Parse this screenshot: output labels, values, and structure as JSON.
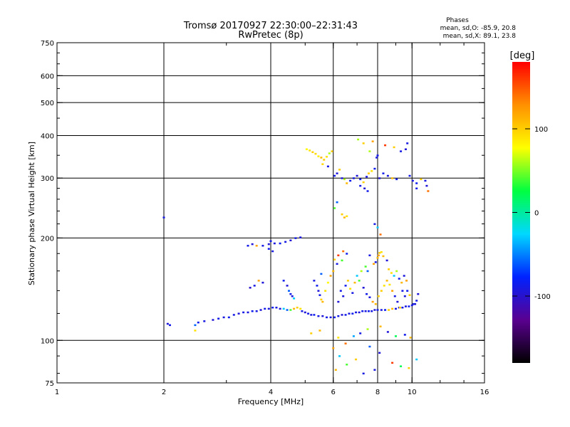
{
  "chart_data": {
    "type": "scatter",
    "title": "Tromsø 20170927 22:30:00–22:31:43",
    "subtitle": "RwPretec (8p)",
    "xlabel": "Frequency [MHz]",
    "ylabel": "Stationary phase Virtual Height [km]",
    "x_scale": "log",
    "y_scale": "log",
    "xlim": [
      1,
      16
    ],
    "ylim": [
      75,
      750
    ],
    "x_ticks": [
      1,
      2,
      4,
      6,
      8,
      10,
      16
    ],
    "x_tick_labels": [
      "1",
      "2",
      "4",
      "6",
      "8",
      "10",
      "16"
    ],
    "y_ticks": [
      75,
      100,
      200,
      300,
      400,
      500,
      600,
      750
    ],
    "y_tick_labels": [
      "75",
      "100",
      "200",
      "300",
      "400",
      "500",
      "600",
      "750"
    ],
    "x_grid": [
      2,
      4,
      6,
      8,
      10
    ],
    "y_grid": [
      100,
      200,
      300,
      400,
      500,
      600
    ],
    "grid": true,
    "phases_box": {
      "title": "Phases",
      "line1": "mean, sd,O: -85.9, 20.8",
      "line2": "mean, sd,X:  89.1, 23.8"
    },
    "colorbar": {
      "label": "[deg]",
      "range": [
        -180,
        180
      ],
      "ticks": [
        100,
        0,
        -100
      ],
      "tick_labels": [
        "100",
        "0",
        "-100"
      ],
      "colors": [
        "#000000",
        "#5a0090",
        "#0022ff",
        "#00d8ff",
        "#00ff40",
        "#ffff00",
        "#ff9000",
        "#ff0000"
      ]
    },
    "point_color_by": "phase_deg",
    "points": [
      [
        2.0,
        230,
        -90
      ],
      [
        2.05,
        112,
        -95
      ],
      [
        2.08,
        111,
        -88
      ],
      [
        2.45,
        111,
        -60
      ],
      [
        2.5,
        113,
        -85
      ],
      [
        2.45,
        107,
        90
      ],
      [
        2.6,
        114,
        -90
      ],
      [
        2.75,
        115,
        -95
      ],
      [
        2.85,
        116,
        -88
      ],
      [
        2.95,
        117,
        -92
      ],
      [
        3.05,
        117,
        -85
      ],
      [
        3.15,
        119,
        -90
      ],
      [
        3.25,
        120,
        -95
      ],
      [
        3.35,
        121,
        -88
      ],
      [
        3.45,
        121,
        -92
      ],
      [
        3.55,
        122,
        -85
      ],
      [
        3.65,
        122,
        -90
      ],
      [
        3.75,
        123,
        -95
      ],
      [
        3.85,
        124,
        -88
      ],
      [
        3.95,
        124,
        -92
      ],
      [
        4.05,
        125,
        -85
      ],
      [
        4.15,
        125,
        -90
      ],
      [
        4.25,
        124,
        -95
      ],
      [
        4.35,
        124,
        -30
      ],
      [
        4.45,
        123,
        -60
      ],
      [
        4.55,
        123,
        40
      ],
      [
        4.65,
        124,
        110
      ],
      [
        4.75,
        125,
        100
      ],
      [
        4.85,
        124,
        90
      ],
      [
        4.9,
        122,
        -90
      ],
      [
        5.0,
        121,
        -95
      ],
      [
        5.1,
        120,
        -88
      ],
      [
        5.2,
        119,
        -92
      ],
      [
        5.3,
        119,
        -85
      ],
      [
        5.45,
        118,
        -90
      ],
      [
        5.6,
        118,
        -95
      ],
      [
        5.75,
        117,
        -88
      ],
      [
        5.9,
        117,
        -92
      ],
      [
        6.05,
        117,
        -85
      ],
      [
        6.2,
        118,
        -90
      ],
      [
        6.35,
        119,
        -95
      ],
      [
        6.5,
        119,
        -88
      ],
      [
        6.65,
        120,
        -92
      ],
      [
        6.8,
        120,
        -85
      ],
      [
        6.95,
        121,
        -90
      ],
      [
        7.1,
        121,
        -95
      ],
      [
        7.25,
        122,
        -88
      ],
      [
        7.4,
        122,
        -92
      ],
      [
        7.55,
        122,
        -85
      ],
      [
        7.7,
        122,
        -90
      ],
      [
        7.85,
        123,
        -95
      ],
      [
        8.0,
        123,
        -88
      ],
      [
        8.2,
        123,
        -92
      ],
      [
        8.4,
        123,
        -85
      ],
      [
        8.6,
        123,
        100
      ],
      [
        8.8,
        124,
        110
      ],
      [
        9.0,
        124,
        -90
      ],
      [
        9.2,
        125,
        -95
      ],
      [
        9.4,
        125,
        -88
      ],
      [
        9.6,
        126,
        -92
      ],
      [
        9.8,
        126,
        -85
      ],
      [
        10.0,
        127,
        -90
      ],
      [
        10.2,
        128,
        -95
      ],
      [
        10.3,
        131,
        -88
      ],
      [
        3.6,
        145,
        -90
      ],
      [
        3.7,
        150,
        120
      ],
      [
        3.5,
        143,
        -100
      ],
      [
        3.8,
        148,
        -95
      ],
      [
        3.65,
        190,
        120
      ],
      [
        3.8,
        190,
        -90
      ],
      [
        3.95,
        192,
        -95
      ],
      [
        4.0,
        196,
        -88
      ],
      [
        4.1,
        193,
        -92
      ],
      [
        4.25,
        193,
        -85
      ],
      [
        4.4,
        195,
        -90
      ],
      [
        4.55,
        197,
        -95
      ],
      [
        4.7,
        200,
        -88
      ],
      [
        4.85,
        201,
        -92
      ],
      [
        3.95,
        186,
        -85
      ],
      [
        4.05,
        183,
        -90
      ],
      [
        3.55,
        192,
        -95
      ],
      [
        3.45,
        190,
        -88
      ],
      [
        4.35,
        150,
        -85
      ],
      [
        4.45,
        145,
        -95
      ],
      [
        4.5,
        140,
        -60
      ],
      [
        4.55,
        137,
        -88
      ],
      [
        4.6,
        135,
        -92
      ],
      [
        4.65,
        133,
        -30
      ],
      [
        5.3,
        150,
        -90
      ],
      [
        5.4,
        145,
        -85
      ],
      [
        5.45,
        140,
        -95
      ],
      [
        5.5,
        136,
        -88
      ],
      [
        5.55,
        132,
        100
      ],
      [
        5.6,
        130,
        110
      ],
      [
        5.7,
        140,
        90
      ],
      [
        5.8,
        148,
        80
      ],
      [
        5.9,
        155,
        120
      ],
      [
        6.0,
        160,
        110
      ],
      [
        6.05,
        173,
        100
      ],
      [
        6.15,
        168,
        -90
      ],
      [
        5.55,
        157,
        -60
      ],
      [
        6.2,
        130,
        -95
      ],
      [
        6.3,
        140,
        -88
      ],
      [
        6.4,
        135,
        -92
      ],
      [
        6.5,
        145,
        -85
      ],
      [
        6.6,
        150,
        100
      ],
      [
        6.7,
        142,
        90
      ],
      [
        6.8,
        138,
        -90
      ],
      [
        6.9,
        148,
        110
      ],
      [
        7.0,
        155,
        -30
      ],
      [
        7.1,
        150,
        40
      ],
      [
        7.2,
        160,
        60
      ],
      [
        7.3,
        143,
        -95
      ],
      [
        7.45,
        137,
        -88
      ],
      [
        7.6,
        134,
        -92
      ],
      [
        7.75,
        130,
        120
      ],
      [
        7.9,
        128,
        110
      ],
      [
        8.05,
        135,
        100
      ],
      [
        8.2,
        140,
        100
      ],
      [
        8.35,
        145,
        90
      ],
      [
        8.5,
        150,
        110
      ],
      [
        8.65,
        146,
        90
      ],
      [
        8.8,
        140,
        120
      ],
      [
        8.95,
        135,
        -90
      ],
      [
        9.1,
        130,
        -95
      ],
      [
        9.25,
        125,
        100
      ],
      [
        9.4,
        140,
        -88
      ],
      [
        9.55,
        135,
        -92
      ],
      [
        9.7,
        140,
        -85
      ],
      [
        9.85,
        136,
        100
      ],
      [
        10.1,
        128,
        -90
      ],
      [
        10.4,
        137,
        -95
      ],
      [
        7.9,
        170,
        -90
      ],
      [
        8.0,
        175,
        110
      ],
      [
        8.05,
        178,
        120
      ],
      [
        8.1,
        181,
        100
      ],
      [
        8.2,
        182,
        90
      ],
      [
        8.3,
        177,
        110
      ],
      [
        7.8,
        168,
        120
      ],
      [
        7.6,
        178,
        -90
      ],
      [
        7.5,
        160,
        -60
      ],
      [
        7.4,
        165,
        40
      ],
      [
        8.5,
        172,
        -95
      ],
      [
        8.6,
        162,
        100
      ],
      [
        8.75,
        158,
        90
      ],
      [
        8.9,
        155,
        -30
      ],
      [
        9.05,
        160,
        60
      ],
      [
        9.2,
        152,
        -88
      ],
      [
        9.35,
        148,
        110
      ],
      [
        9.5,
        155,
        -92
      ],
      [
        9.65,
        150,
        120
      ],
      [
        6.4,
        183,
        140
      ],
      [
        6.55,
        180,
        -85
      ],
      [
        6.2,
        178,
        160
      ],
      [
        6.35,
        172,
        40
      ],
      [
        5.2,
        105,
        100
      ],
      [
        5.5,
        107,
        110
      ],
      [
        6.2,
        102,
        90
      ],
      [
        6.5,
        98,
        140
      ],
      [
        6.85,
        103,
        -40
      ],
      [
        7.15,
        105,
        -90
      ],
      [
        7.5,
        108,
        60
      ],
      [
        8.15,
        110,
        110
      ],
      [
        8.55,
        106,
        -95
      ],
      [
        9.0,
        103,
        20
      ],
      [
        9.55,
        104,
        -88
      ],
      [
        9.9,
        102,
        110
      ],
      [
        6.0,
        95,
        120
      ],
      [
        6.25,
        90,
        -30
      ],
      [
        6.55,
        85,
        40
      ],
      [
        6.95,
        88,
        100
      ],
      [
        7.3,
        80,
        -90
      ],
      [
        7.6,
        96,
        -60
      ],
      [
        8.1,
        92,
        -95
      ],
      [
        8.8,
        86,
        160
      ],
      [
        9.3,
        84,
        20
      ],
      [
        9.8,
        83,
        100
      ],
      [
        10.3,
        88,
        -30
      ],
      [
        6.1,
        82,
        110
      ],
      [
        7.85,
        82,
        -92
      ],
      [
        5.05,
        365,
        80
      ],
      [
        5.15,
        362,
        90
      ],
      [
        5.25,
        358,
        100
      ],
      [
        5.35,
        354,
        95
      ],
      [
        5.45,
        348,
        85
      ],
      [
        5.55,
        345,
        110
      ],
      [
        5.65,
        340,
        100
      ],
      [
        5.75,
        347,
        90
      ],
      [
        5.85,
        355,
        60
      ],
      [
        5.95,
        360,
        100
      ],
      [
        5.6,
        330,
        95
      ],
      [
        5.8,
        325,
        -90
      ],
      [
        6.05,
        305,
        -88
      ],
      [
        6.15,
        310,
        -95
      ],
      [
        6.25,
        318,
        100
      ],
      [
        6.35,
        300,
        -92
      ],
      [
        6.45,
        298,
        60
      ],
      [
        6.55,
        290,
        110
      ],
      [
        6.7,
        295,
        -85
      ],
      [
        6.85,
        300,
        -90
      ],
      [
        7.0,
        305,
        -95
      ],
      [
        7.15,
        298,
        -88
      ],
      [
        7.3,
        292,
        100
      ],
      [
        7.45,
        303,
        -92
      ],
      [
        7.55,
        310,
        100
      ],
      [
        7.7,
        315,
        90
      ],
      [
        7.85,
        320,
        -85
      ],
      [
        7.95,
        345,
        -90
      ],
      [
        8.1,
        300,
        -95
      ],
      [
        8.3,
        310,
        -88
      ],
      [
        8.55,
        305,
        -92
      ],
      [
        8.8,
        300,
        110
      ],
      [
        9.05,
        298,
        -85
      ],
      [
        9.3,
        360,
        -90
      ],
      [
        9.6,
        365,
        -95
      ],
      [
        9.85,
        305,
        -88
      ],
      [
        10.05,
        295,
        -92
      ],
      [
        10.3,
        290,
        -85
      ],
      [
        10.6,
        298,
        100
      ],
      [
        10.9,
        295,
        -90
      ],
      [
        11.1,
        275,
        140
      ],
      [
        11.0,
        285,
        -95
      ],
      [
        10.3,
        280,
        -88
      ],
      [
        6.35,
        235,
        100
      ],
      [
        6.45,
        230,
        110
      ],
      [
        6.55,
        232,
        90
      ],
      [
        6.15,
        255,
        -60
      ],
      [
        6.05,
        245,
        40
      ],
      [
        7.15,
        285,
        -90
      ],
      [
        7.35,
        280,
        -95
      ],
      [
        7.5,
        275,
        -88
      ],
      [
        7.85,
        220,
        -90
      ],
      [
        8.15,
        205,
        140
      ],
      [
        8.0,
        215,
        -30
      ],
      [
        7.05,
        390,
        60
      ],
      [
        7.3,
        380,
        100
      ],
      [
        7.75,
        385,
        120
      ],
      [
        8.4,
        375,
        160
      ],
      [
        8.9,
        370,
        100
      ],
      [
        9.7,
        380,
        -90
      ],
      [
        7.6,
        360,
        60
      ],
      [
        8.0,
        350,
        -88
      ]
    ]
  }
}
